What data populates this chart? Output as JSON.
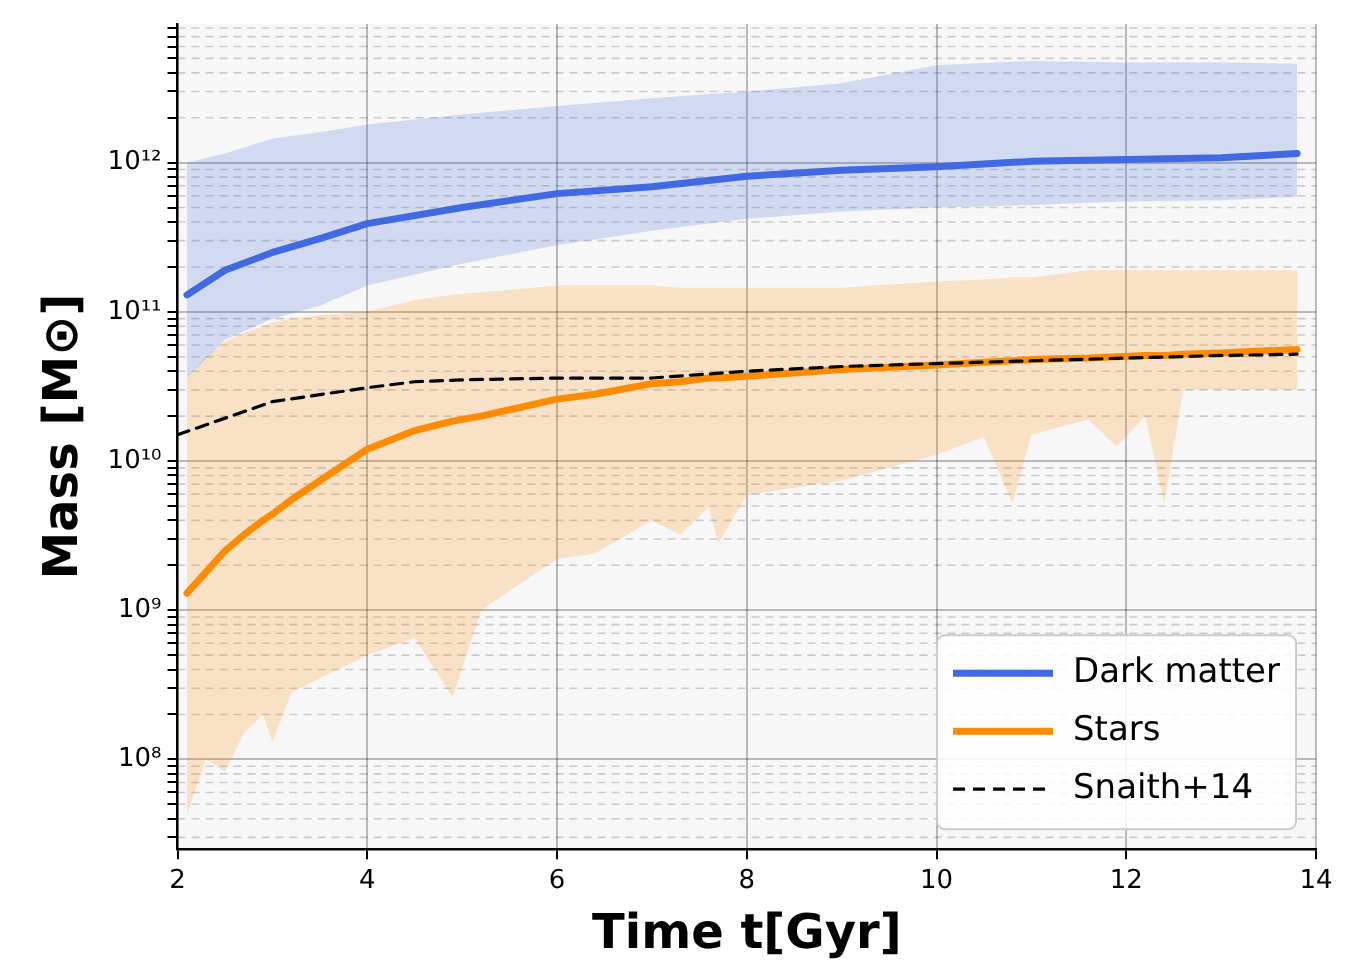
{
  "chart_data": {
    "type": "line",
    "xlabel": "Time t[Gyr]",
    "ylabel": "Mass [M⊙]",
    "xlim": [
      2,
      14
    ],
    "xticks": [
      2,
      4,
      6,
      8,
      10,
      12,
      14
    ],
    "ylim": [
      25000000.0,
      8500000000000.0
    ],
    "log": "y",
    "yticks": [
      {
        "value": 30000000.0,
        "label": null
      },
      {
        "value": 40000000.0,
        "label": null
      },
      {
        "value": 50000000.0,
        "label": null
      },
      {
        "value": 60000000.0,
        "label": null
      },
      {
        "value": 70000000.0,
        "label": null
      },
      {
        "value": 80000000.0,
        "label": null
      },
      {
        "value": 90000000.0,
        "label": null
      },
      {
        "value": 100000000.0,
        "label": "10⁸"
      },
      {
        "value": 200000000.0,
        "label": null
      },
      {
        "value": 300000000.0,
        "label": null
      },
      {
        "value": 400000000.0,
        "label": null
      },
      {
        "value": 500000000.0,
        "label": null
      },
      {
        "value": 600000000.0,
        "label": null
      },
      {
        "value": 700000000.0,
        "label": null
      },
      {
        "value": 800000000.0,
        "label": null
      },
      {
        "value": 900000000.0,
        "label": null
      },
      {
        "value": 1000000000.0,
        "label": "10⁹"
      },
      {
        "value": 2000000000.0,
        "label": null
      },
      {
        "value": 3000000000.0,
        "label": null
      },
      {
        "value": 4000000000.0,
        "label": null
      },
      {
        "value": 5000000000.0,
        "label": null
      },
      {
        "value": 6000000000.0,
        "label": null
      },
      {
        "value": 7000000000.0,
        "label": null
      },
      {
        "value": 8000000000.0,
        "label": null
      },
      {
        "value": 9000000000.0,
        "label": null
      },
      {
        "value": 10000000000.0,
        "label": "10¹⁰"
      },
      {
        "value": 20000000000.0,
        "label": null
      },
      {
        "value": 30000000000.0,
        "label": null
      },
      {
        "value": 40000000000.0,
        "label": null
      },
      {
        "value": 50000000000.0,
        "label": null
      },
      {
        "value": 60000000000.0,
        "label": null
      },
      {
        "value": 70000000000.0,
        "label": null
      },
      {
        "value": 80000000000.0,
        "label": null
      },
      {
        "value": 90000000000.0,
        "label": null
      },
      {
        "value": 100000000000.0,
        "label": "10¹¹"
      },
      {
        "value": 200000000000.0,
        "label": null
      },
      {
        "value": 300000000000.0,
        "label": null
      },
      {
        "value": 400000000000.0,
        "label": null
      },
      {
        "value": 500000000000.0,
        "label": null
      },
      {
        "value": 600000000000.0,
        "label": null
      },
      {
        "value": 700000000000.0,
        "label": null
      },
      {
        "value": 800000000000.0,
        "label": null
      },
      {
        "value": 900000000000.0,
        "label": null
      },
      {
        "value": 1000000000000.0,
        "label": "10¹²"
      },
      {
        "value": 2000000000000.0,
        "label": null
      },
      {
        "value": 3000000000000.0,
        "label": null
      },
      {
        "value": 4000000000000.0,
        "label": null
      },
      {
        "value": 5000000000000.0,
        "label": null
      },
      {
        "value": 6000000000000.0,
        "label": null
      },
      {
        "value": 7000000000000.0,
        "label": null
      },
      {
        "value": 8000000000000.0,
        "label": null
      }
    ],
    "grid": true,
    "legend": "bottom right",
    "marker": "none",
    "series": [
      {
        "name": "Dark matter",
        "color": "#4169e1",
        "line_style": "solid",
        "x": [
          2.1,
          2.5,
          3,
          3.5,
          4,
          5,
          6,
          7,
          8,
          9,
          10,
          11,
          12,
          13,
          13.8
        ],
        "values": [
          130000000000.0,
          190000000000.0,
          250000000000.0,
          310000000000.0,
          390000000000.0,
          500000000000.0,
          620000000000.0,
          690000000000.0,
          810000000000.0,
          890000000000.0,
          940000000000.0,
          1020000000000.0,
          1050000000000.0,
          1080000000000.0,
          1150000000000.0
        ],
        "upper": [
          1000000000000.0,
          1150000000000.0,
          1450000000000.0,
          1600000000000.0,
          1800000000000.0,
          2100000000000.0,
          2400000000000.0,
          2700000000000.0,
          3000000000000.0,
          3400000000000.0,
          4500000000000.0,
          4800000000000.0,
          4700000000000.0,
          4700000000000.0,
          4600000000000.0
        ],
        "lower": [
          36000000000.0,
          65000000000.0,
          90000000000.0,
          110000000000.0,
          150000000000.0,
          210000000000.0,
          280000000000.0,
          350000000000.0,
          420000000000.0,
          470000000000.0,
          500000000000.0,
          520000000000.0,
          550000000000.0,
          560000000000.0,
          590000000000.0
        ]
      },
      {
        "name": "Stars",
        "color": "#ff8c00",
        "line_style": "solid",
        "x": [
          2.1,
          2.3,
          2.5,
          2.7,
          2.9,
          3,
          3.2,
          3.5,
          4,
          4.5,
          4.9,
          5.2,
          6,
          6.4,
          7,
          7.3,
          7.6,
          7.7,
          8,
          9,
          10,
          10.5,
          10.8,
          11,
          11.6,
          11.9,
          12.2,
          12.4,
          12.6,
          13,
          13.8
        ],
        "values": [
          1300000000.0,
          1800000000.0,
          2500000000.0,
          3200000000.0,
          4000000000.0,
          4400000000.0,
          5500000000.0,
          7400000000.0,
          12000000000.0,
          16000000000.0,
          18500000000.0,
          20000000000.0,
          26000000000.0,
          28000000000.0,
          33000000000.0,
          34000000000.0,
          36000000000.0,
          36000000000.0,
          37000000000.0,
          41000000000.0,
          44000000000.0,
          46000000000.0,
          47000000000.0,
          48000000000.0,
          49000000000.0,
          50000000000.0,
          51000000000.0,
          51000000000.0,
          52000000000.0,
          53000000000.0,
          56000000000.0
        ],
        "upper": [
          36000000000.0,
          50000000000.0,
          63000000000.0,
          72000000000.0,
          80000000000.0,
          85000000000.0,
          90000000000.0,
          95000000000.0,
          100000000000.0,
          120000000000.0,
          130000000000.0,
          135000000000.0,
          150000000000.0,
          150000000000.0,
          150000000000.0,
          145000000000.0,
          145000000000.0,
          145000000000.0,
          145000000000.0,
          145000000000.0,
          160000000000.0,
          165000000000.0,
          170000000000.0,
          170000000000.0,
          190000000000.0,
          190000000000.0,
          190000000000.0,
          190000000000.0,
          190000000000.0,
          190000000000.0,
          190000000000.0
        ],
        "lower": [
          43000000.0,
          100000000.0,
          83000000.0,
          150000000.0,
          200000000.0,
          130000000.0,
          280000000.0,
          350000000.0,
          500000000.0,
          650000000.0,
          260000000.0,
          1000000000.0,
          2200000000.0,
          2400000000.0,
          4000000000.0,
          3200000000.0,
          4900000000.0,
          2800000000.0,
          5900000000.0,
          7400000000.0,
          11000000000.0,
          14500000000.0,
          5200000000.0,
          15000000000.0,
          19000000000.0,
          12500000000.0,
          20000000000.0,
          5200000000.0,
          30000000000.0,
          30000000000.0,
          30000000000.0
        ]
      },
      {
        "name": "Snaith+14",
        "color": "#000000",
        "line_style": "dashed",
        "x": [
          2,
          3,
          4,
          4.5,
          5,
          6,
          7,
          8,
          9,
          10,
          11,
          12,
          13,
          13.8
        ],
        "values": [
          15000000000.0,
          25000000000.0,
          31000000000.0,
          34000000000.0,
          35000000000.0,
          36000000000.0,
          36000000000.0,
          40000000000.0,
          43000000000.0,
          45000000000.0,
          47000000000.0,
          49000000000.0,
          51000000000.0,
          52000000000.0
        ]
      }
    ]
  }
}
